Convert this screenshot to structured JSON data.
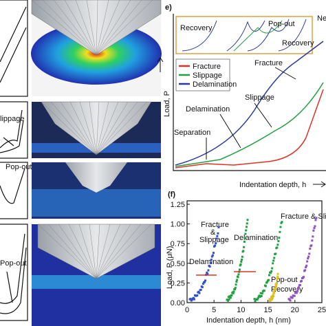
{
  "left_panels": {
    "labels": [
      "lippage",
      "Pop-out",
      "Pop-out"
    ]
  },
  "panel_e": {
    "letter": "e)",
    "inset": {
      "labels": [
        "Recovery",
        "Pop-out",
        "Recovery"
      ],
      "cut_label": "Ne"
    },
    "legend": [
      {
        "name": "Fracture",
        "color": "#e03020"
      },
      {
        "name": "Slippage",
        "color": "#20a040"
      },
      {
        "name": "Delamination",
        "color": "#2838a0"
      }
    ],
    "annotations": [
      "Fracture",
      "Slippage",
      "Delamination",
      "Separation"
    ],
    "y_label": "Load, P",
    "x_label": "Indentation depth, h"
  },
  "panel_f": {
    "letter": "(f)",
    "y_label": "Load, P (μN)",
    "x_label": "Indentation depth, h (nm)",
    "yticks": [
      "0.00",
      "0.25",
      "0.50",
      "0.75",
      "1.00",
      "1.25"
    ],
    "xticks": [
      "0",
      "5",
      "10",
      "15",
      "20",
      "25"
    ],
    "annotations": [
      "Fracture",
      "&",
      "Slippage",
      "Delamination",
      "Delamination",
      "Pop-out",
      "Recovery",
      "Fracture & Slippa"
    ]
  }
}
